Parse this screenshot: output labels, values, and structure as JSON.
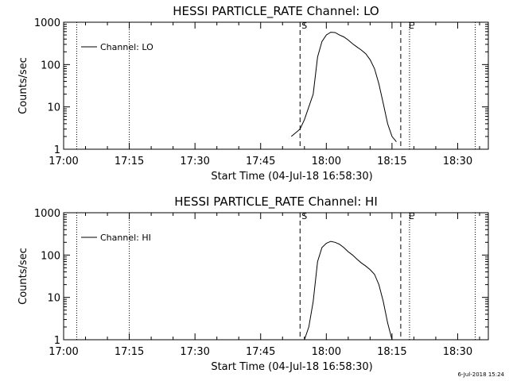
{
  "timestamp": "6-Jul-2018 15:24",
  "chart_data": [
    {
      "type": "line",
      "title": "HESSI PARTICLE_RATE Channel: LO",
      "xlabel": "Start Time (04-Jul-18 16:58:30)",
      "ylabel": "Counts/sec",
      "yscale": "log",
      "xlim": [
        "17:00",
        "18:37"
      ],
      "ylim": [
        1,
        1000
      ],
      "x_ticks": [
        "17:00",
        "17:15",
        "17:30",
        "17:45",
        "18:00",
        "18:15",
        "18:30"
      ],
      "y_ticks": [
        "1",
        "10",
        "100",
        "1000"
      ],
      "legend": "top-left",
      "markers": {
        "start_label": "S",
        "end_label": "E",
        "start_time": "17:54",
        "end_time": "18:17"
      },
      "dotted_lines": [
        "17:03",
        "17:15",
        "18:19",
        "18:34"
      ],
      "series": [
        {
          "name": "Channel: LO",
          "color": "#000000",
          "x": [
            "17:52",
            "17:54",
            "17:55",
            "17:57",
            "17:58",
            "17:59",
            "18:00",
            "18:01",
            "18:02",
            "18:03",
            "18:04",
            "18:05",
            "18:06",
            "18:07",
            "18:08",
            "18:09",
            "18:10",
            "18:11",
            "18:12",
            "18:13",
            "18:14",
            "18:15",
            "18:16"
          ],
          "values": [
            2,
            3,
            5,
            20,
            150,
            350,
            500,
            580,
            570,
            500,
            450,
            380,
            310,
            260,
            220,
            180,
            130,
            80,
            35,
            12,
            4,
            2,
            1.5
          ]
        }
      ]
    },
    {
      "type": "line",
      "title": "HESSI PARTICLE_RATE Channel: HI",
      "xlabel": "Start Time (04-Jul-18 16:58:30)",
      "ylabel": "Counts/sec",
      "yscale": "log",
      "xlim": [
        "17:00",
        "18:37"
      ],
      "ylim": [
        1,
        1000
      ],
      "x_ticks": [
        "17:00",
        "17:15",
        "17:30",
        "17:45",
        "18:00",
        "18:15",
        "18:30"
      ],
      "y_ticks": [
        "1",
        "10",
        "100",
        "1000"
      ],
      "legend": "top-left",
      "markers": {
        "start_label": "S",
        "end_label": "E",
        "start_time": "17:54",
        "end_time": "18:17"
      },
      "dotted_lines": [
        "17:03",
        "17:15",
        "18:19",
        "18:34"
      ],
      "series": [
        {
          "name": "Channel: HI",
          "color": "#000000",
          "x": [
            "17:55",
            "17:56",
            "17:57",
            "17:58",
            "17:59",
            "18:00",
            "18:01",
            "18:02",
            "18:03",
            "18:04",
            "18:05",
            "18:06",
            "18:07",
            "18:08",
            "18:09",
            "18:10",
            "18:11",
            "18:12",
            "18:13",
            "18:14",
            "18:15"
          ],
          "values": [
            1,
            2,
            8,
            70,
            150,
            190,
            210,
            200,
            180,
            150,
            120,
            100,
            80,
            65,
            55,
            45,
            35,
            20,
            8,
            2.5,
            1
          ]
        }
      ]
    }
  ]
}
